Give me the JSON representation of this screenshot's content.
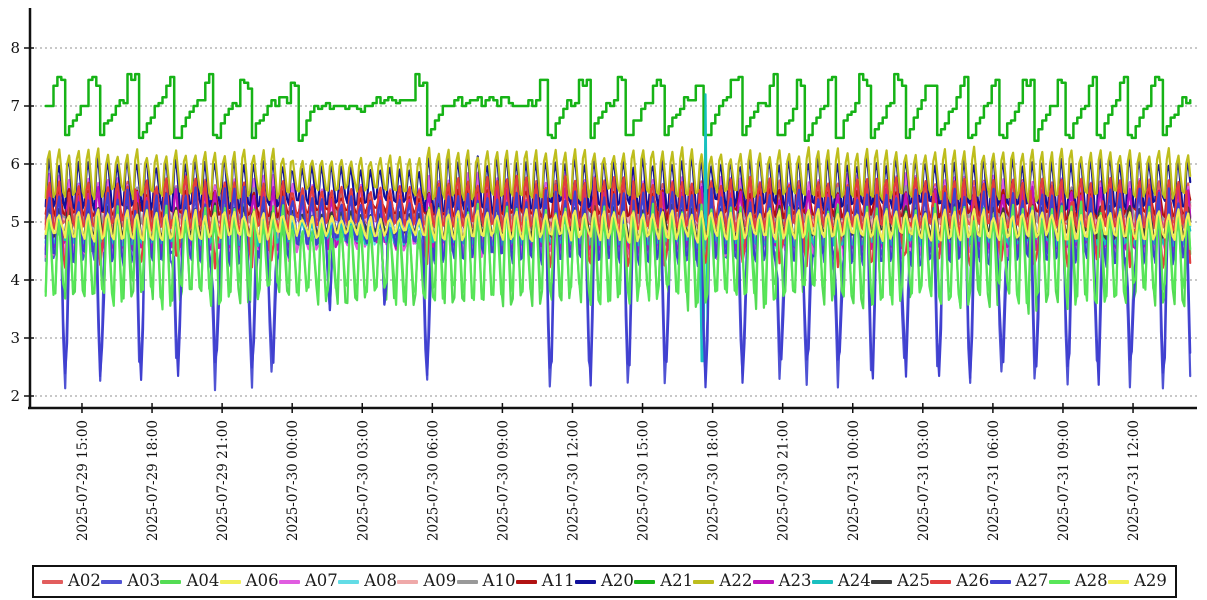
{
  "chart_data": {
    "type": "line",
    "title": "",
    "xlabel": "",
    "ylabel": "",
    "ylim": [
      2,
      8
    ],
    "yticks": [
      2,
      3,
      4,
      5,
      6,
      7,
      8
    ],
    "grid": "dashed-horizontal",
    "legend_position": "bottom-row-boxed",
    "time_start": "2025-07-29 13:25",
    "time_end": "2025-07-31 14:30",
    "x_tick_interval_hours": 3,
    "x_tick_labels": [
      "2025-07-29 15:00",
      "2025-07-29 18:00",
      "2025-07-29 21:00",
      "2025-07-30 00:00",
      "2025-07-30 03:00",
      "2025-07-30 06:00",
      "2025-07-30 09:00",
      "2025-07-30 12:00",
      "2025-07-30 15:00",
      "2025-07-30 18:00",
      "2025-07-30 21:00",
      "2025-07-31 00:00",
      "2025-07-31 03:00",
      "2025-07-31 06:00",
      "2025-07-31 09:00",
      "2025-07-31 12:00"
    ],
    "oscillation_period_minutes": 25,
    "quiet_window_hours": [
      10.6,
      16.2
    ],
    "deep_dip_hours": [
      0.86,
      2.35,
      4.07,
      5.65,
      7.28,
      8.86,
      9.72,
      16.35,
      21.62,
      23.33,
      24.96,
      26.54,
      28.25,
      29.84,
      31.46,
      32.62,
      33.95,
      35.4,
      36.82,
      38.23,
      39.6,
      40.97,
      42.38,
      43.79,
      45.08,
      46.45,
      47.86,
      49.05
    ],
    "medium_dip_hours": [
      12.2,
      14.55
    ],
    "a21_dip_hours": [
      0.86,
      2.35,
      4.07,
      5.65,
      7.28,
      8.86,
      10.95,
      16.35,
      21.62,
      23.33,
      24.96,
      26.54,
      28.25,
      29.84,
      31.46,
      32.62,
      33.95,
      35.4,
      36.82,
      38.23,
      39.6,
      40.97,
      42.38,
      43.79,
      45.08,
      46.45,
      47.86
    ],
    "series": [
      {
        "name": "A02",
        "color": "#e25d5d",
        "low": 4.7,
        "high": 5.8
      },
      {
        "name": "A03",
        "color": "#5053d4",
        "low": 4.05,
        "high": 5.75,
        "dip_min": 2.1,
        "dips": "deep"
      },
      {
        "name": "A04",
        "color": "#54dc54",
        "low": 3.15,
        "high": 5.5
      },
      {
        "name": "A06",
        "color": "#f1ef5a",
        "low": 4.5,
        "high": 5.3
      },
      {
        "name": "A07",
        "color": "#e05ce0",
        "low": 4.1,
        "high": 5.95
      },
      {
        "name": "A08",
        "color": "#63dce6",
        "low": 4.45,
        "high": 5.2
      },
      {
        "name": "A09",
        "color": "#efa9a9",
        "low": 4.85,
        "high": 5.5
      },
      {
        "name": "A10",
        "color": "#999999",
        "low": 4.85,
        "high": 5.65
      },
      {
        "name": "A11",
        "color": "#b11212",
        "low": 4.95,
        "high": 5.6
      },
      {
        "name": "A20",
        "color": "#10109b",
        "low": 5.0,
        "high": 6.2
      },
      {
        "name": "A21",
        "color": "#16b316",
        "low": 6.4,
        "high": 7.57,
        "style": "steps"
      },
      {
        "name": "A22",
        "color": "#bdbd1d",
        "low": 5.2,
        "high": 6.35
      },
      {
        "name": "A23",
        "color": "#bd12bd",
        "low": 4.25,
        "high": 5.7
      },
      {
        "name": "A24",
        "color": "#19c0c0",
        "low": 4.45,
        "high": 5.15,
        "spike": {
          "hour": 28.25,
          "high": 7.2,
          "low": 2.6
        }
      },
      {
        "name": "A25",
        "color": "#3c3c3c",
        "low": 4.6,
        "high": 5.35
      },
      {
        "name": "A26",
        "color": "#e23d3d",
        "low": 4.65,
        "high": 5.85,
        "dip_min": 4.2,
        "dips": "deep"
      },
      {
        "name": "A27",
        "color": "#4040d0",
        "low": 4.0,
        "high": 5.7,
        "dip_min": 2.15,
        "dips": "deep"
      },
      {
        "name": "A28",
        "color": "#58e658",
        "low": 3.2,
        "high": 5.45
      },
      {
        "name": "A29",
        "color": "#f1ee55",
        "low": 4.55,
        "high": 5.25
      }
    ]
  }
}
